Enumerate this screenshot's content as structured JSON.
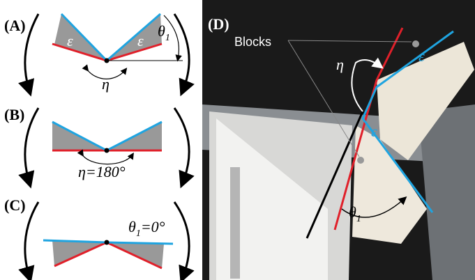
{
  "panels": {
    "a": {
      "label": "(A)",
      "epsilon": "ε",
      "theta": {
        "symbol": "θ",
        "subscript": "1"
      },
      "eta": "η"
    },
    "b": {
      "label": "(B)",
      "eta_text": "η=180°"
    },
    "c": {
      "label": "(C)",
      "theta_text": {
        "symbol": "θ",
        "subscript": "1",
        "rest": "=0°"
      }
    },
    "d": {
      "label": "(D)",
      "blocks": "Blocks",
      "eta": "η",
      "epsilon": "ε",
      "theta": {
        "symbol": "θ",
        "subscript": "1"
      }
    }
  }
}
